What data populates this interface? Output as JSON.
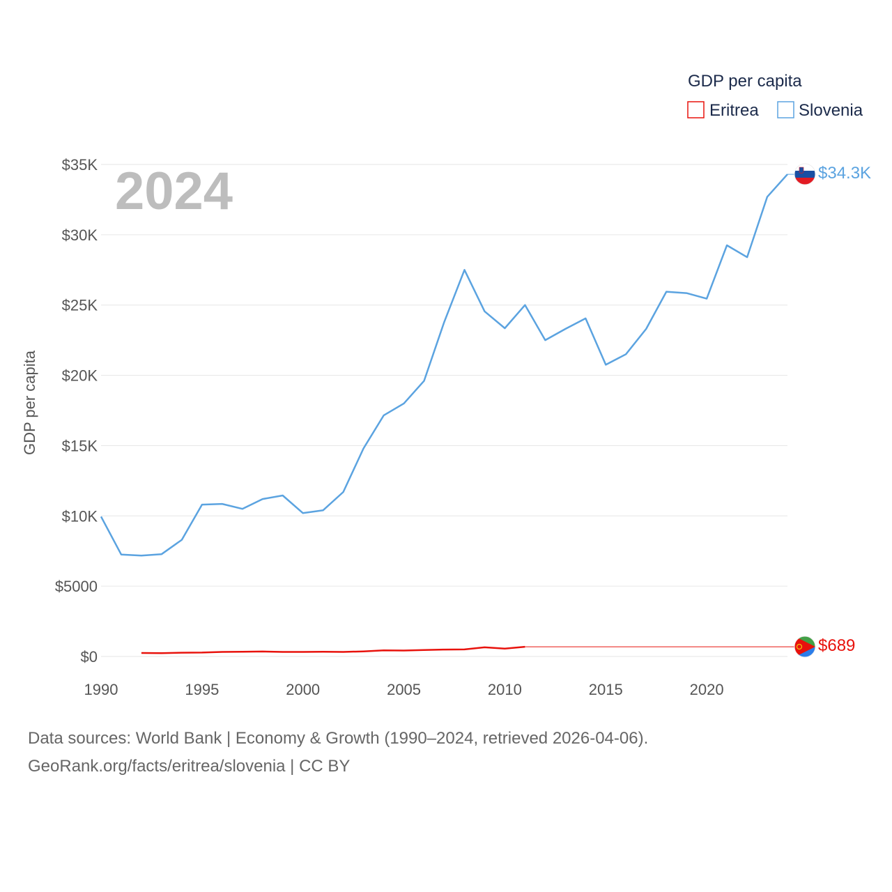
{
  "colors": {
    "eritrea": "#e8120c",
    "slovenia": "#5ba3e0",
    "grid": "#e6e6e6",
    "tick": "#555555",
    "big_year": "#bdbdbd"
  },
  "chart_data": {
    "type": "line",
    "title": "GDP per capita",
    "ylabel": "GDP per capita",
    "xlabel": "",
    "year_label": "2024",
    "xlim": [
      1990,
      2024
    ],
    "ylim": [
      0,
      35000
    ],
    "x_ticks": [
      1990,
      1995,
      2000,
      2005,
      2010,
      2015,
      2020
    ],
    "x_tick_labels": [
      "1990",
      "1995",
      "2000",
      "2005",
      "2010",
      "2015",
      "2020"
    ],
    "y_ticks": [
      0,
      5000,
      10000,
      15000,
      20000,
      25000,
      30000,
      35000
    ],
    "y_tick_labels": [
      "$0",
      "$5000",
      "$10K",
      "$15K",
      "$20K",
      "$25K",
      "$30K",
      "$35K"
    ],
    "legend": {
      "title": "GDP per capita",
      "placement": "top-right",
      "entries": [
        "Eritrea",
        "Slovenia"
      ]
    },
    "series": [
      {
        "name": "Slovenia",
        "color": "#5ba3e0",
        "end_label": "$34.3K",
        "end_value": 34300,
        "x": [
          1990,
          1991,
          1992,
          1993,
          1994,
          1995,
          1996,
          1997,
          1998,
          1999,
          2000,
          2001,
          2002,
          2003,
          2004,
          2005,
          2006,
          2007,
          2008,
          2009,
          2010,
          2011,
          2012,
          2013,
          2014,
          2015,
          2016,
          2017,
          2018,
          2019,
          2020,
          2021,
          2022,
          2023,
          2024
        ],
        "values": [
          9950,
          7250,
          7180,
          7280,
          8300,
          10800,
          10850,
          10500,
          11200,
          11450,
          10200,
          10400,
          11700,
          14800,
          17150,
          18000,
          19600,
          23800,
          27500,
          24550,
          23350,
          25000,
          22500,
          23300,
          24050,
          20750,
          21500,
          23300,
          25950,
          25850,
          25450,
          29250,
          28400,
          32700,
          34300
        ]
      },
      {
        "name": "Eritrea",
        "color": "#e8120c",
        "end_label": "$689",
        "end_value": 689,
        "x": [
          1992,
          1993,
          1994,
          1995,
          1996,
          1997,
          1998,
          1999,
          2000,
          2001,
          2002,
          2003,
          2004,
          2005,
          2006,
          2007,
          2008,
          2009,
          2010,
          2011
        ],
        "values": [
          250,
          240,
          270,
          280,
          320,
          330,
          350,
          320,
          320,
          330,
          320,
          360,
          430,
          420,
          460,
          490,
          500,
          650,
          560,
          689
        ]
      }
    ]
  },
  "footer": {
    "line1": "Data sources: World Bank | Economy & Growth (1990–2024, retrieved 2026-04-06).",
    "line2": "GeoRank.org/facts/eritrea/slovenia | CC BY"
  }
}
